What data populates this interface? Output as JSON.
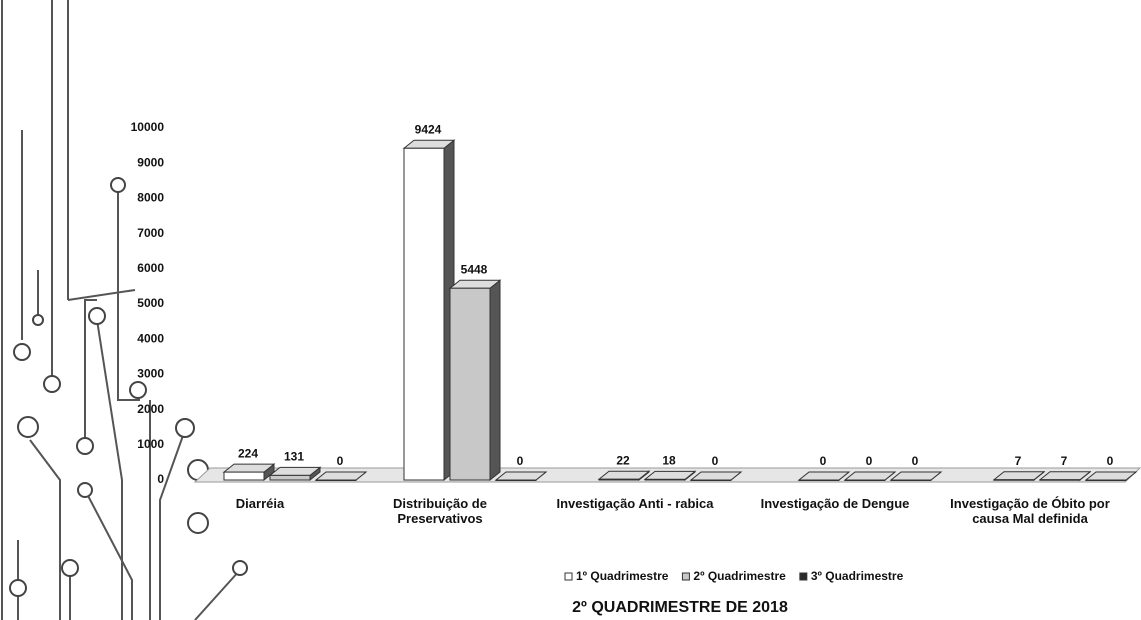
{
  "chart_data": {
    "type": "bar",
    "title": "2º QUADRIMESTRE DE 2018",
    "categories": [
      "Diarréia",
      "Distribuição de Preservativos",
      "Investigação Anti - rabica",
      "Investigação de Dengue",
      "Investigação de Óbito por causa Mal definida"
    ],
    "series": [
      {
        "name": "1º Quadrimestre",
        "color": "#ffffff",
        "values": [
          224,
          9424,
          22,
          0,
          7
        ]
      },
      {
        "name": "2º Quadrimestre",
        "color": "#c8c8c8",
        "values": [
          131,
          5448,
          18,
          0,
          7
        ]
      },
      {
        "name": "3º Quadrimestre",
        "color": "#2a2a2a",
        "values": [
          0,
          0,
          0,
          0,
          0
        ]
      }
    ],
    "ylim": [
      0,
      10000
    ],
    "yticks": [
      0,
      1000,
      2000,
      3000,
      4000,
      5000,
      6000,
      7000,
      8000,
      9000,
      10000
    ],
    "grid": false,
    "legend": "bottom"
  }
}
